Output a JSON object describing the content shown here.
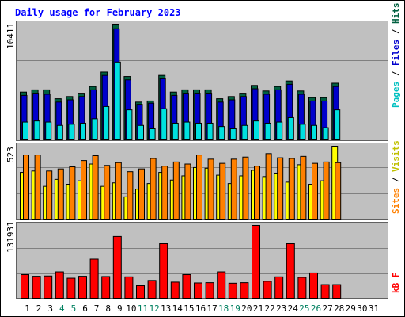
{
  "title": "Daily usage for February 2023",
  "colors": {
    "background": "#ffffff",
    "plot": "#c0c0c0",
    "hits": "#006040",
    "files": "#0000cc",
    "pages": "#00e0e0",
    "visits": "#ffff00",
    "sites": "#ff8000",
    "kbytes": "#ff0000",
    "title": "#0000ff"
  },
  "chart_data": [
    {
      "type": "bar",
      "panel": "hits-files-pages",
      "ymax_label": "10411",
      "ylim": [
        0,
        10411
      ],
      "right_label": {
        "pages": "Pages",
        "sep1": " / ",
        "files": "Files",
        "sep2": " / ",
        "hits": "Hits"
      },
      "categories": [
        "1",
        "2",
        "3",
        "4",
        "5",
        "6",
        "7",
        "8",
        "9",
        "10",
        "11",
        "12",
        "13",
        "14",
        "15",
        "16",
        "17",
        "18",
        "19",
        "20",
        "21",
        "22",
        "23",
        "24",
        "25",
        "26",
        "27",
        "28"
      ],
      "series": [
        {
          "name": "Hits",
          "values": [
            4300,
            4500,
            4500,
            3700,
            3900,
            4200,
            4800,
            6100,
            10411,
            5700,
            3400,
            3500,
            5800,
            4300,
            4500,
            4500,
            4500,
            3700,
            3900,
            4200,
            4900,
            4400,
            4800,
            5300,
            4400,
            3800,
            3800,
            5100
          ]
        },
        {
          "name": "Files",
          "values": [
            4000,
            4200,
            4100,
            3400,
            3600,
            3900,
            4500,
            5800,
            10000,
            5400,
            3200,
            3300,
            5500,
            4000,
            4200,
            4200,
            4200,
            3400,
            3600,
            3900,
            4600,
            4100,
            4500,
            5000,
            4100,
            3500,
            3500,
            4800
          ]
        },
        {
          "name": "Pages",
          "values": [
            1600,
            1700,
            1600,
            1300,
            1400,
            1500,
            1900,
            3000,
            7000,
            2700,
            1300,
            1000,
            2800,
            1500,
            1600,
            1500,
            1500,
            1200,
            1000,
            1300,
            1700,
            1500,
            1600,
            2000,
            1400,
            1300,
            1100,
            2700
          ]
        }
      ]
    },
    {
      "type": "bar",
      "panel": "visits-sites",
      "ymax_label": "523",
      "ylim": [
        0,
        523
      ],
      "right_label": {
        "sites": "Sites",
        "sep": " / ",
        "visits": "Visits"
      },
      "categories": [
        "1",
        "2",
        "3",
        "4",
        "5",
        "6",
        "7",
        "8",
        "9",
        "10",
        "11",
        "12",
        "13",
        "14",
        "15",
        "16",
        "17",
        "18",
        "19",
        "20",
        "21",
        "22",
        "23",
        "24",
        "25",
        "26",
        "27",
        "28"
      ],
      "series": [
        {
          "name": "Visits",
          "values": [
            335,
            345,
            235,
            285,
            250,
            275,
            395,
            235,
            260,
            160,
            215,
            255,
            335,
            280,
            310,
            370,
            365,
            315,
            255,
            310,
            350,
            305,
            330,
            265,
            390,
            250,
            275,
            523
          ]
        },
        {
          "name": "Sites",
          "values": [
            460,
            460,
            345,
            360,
            375,
            420,
            455,
            385,
            405,
            340,
            360,
            435,
            380,
            410,
            395,
            460,
            430,
            400,
            430,
            445,
            380,
            470,
            440,
            435,
            450,
            400,
            410,
            405
          ]
        }
      ]
    },
    {
      "type": "bar",
      "panel": "kbytes",
      "ymax_label": "131931",
      "ylim": [
        0,
        131931
      ],
      "right_label": {
        "kb": "kB F"
      },
      "categories": [
        "1",
        "2",
        "3",
        "4",
        "5",
        "6",
        "7",
        "8",
        "9",
        "10",
        "11",
        "12",
        "13",
        "14",
        "15",
        "16",
        "17",
        "18",
        "19",
        "20",
        "21",
        "22",
        "23",
        "24",
        "25",
        "26",
        "27",
        "28"
      ],
      "series": [
        {
          "name": "KBytes",
          "values": [
            43000,
            40000,
            40500,
            48000,
            36500,
            40000,
            71000,
            39500,
            112000,
            39000,
            23000,
            32500,
            99000,
            29500,
            43000,
            28000,
            28500,
            48000,
            27500,
            28500,
            131931,
            31000,
            39000,
            99000,
            38000,
            46000,
            25000,
            25000
          ]
        }
      ]
    }
  ],
  "x_axis": {
    "labels": [
      "1",
      "2",
      "3",
      "4",
      "5",
      "6",
      "7",
      "8",
      "9",
      "10",
      "11",
      "12",
      "13",
      "14",
      "15",
      "16",
      "17",
      "18",
      "19",
      "20",
      "21",
      "22",
      "23",
      "24",
      "25",
      "26",
      "27",
      "28",
      "29",
      "30",
      "31"
    ],
    "weekend_days": [
      4,
      5,
      11,
      12,
      18,
      19,
      25,
      26
    ]
  }
}
